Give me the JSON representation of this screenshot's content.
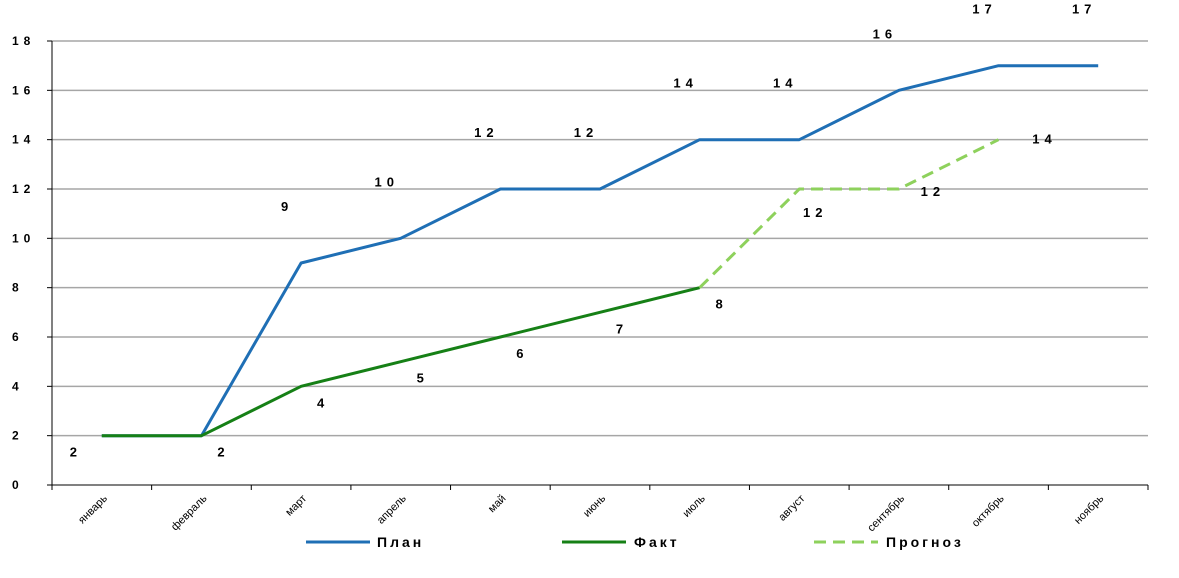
{
  "chart_data": {
    "type": "line",
    "categories": [
      "январь",
      "февраль",
      "март",
      "апрель",
      "май",
      "июнь",
      "июль",
      "август",
      "сентябрь",
      "октябрь",
      "ноябрь"
    ],
    "ylim": [
      0,
      18
    ],
    "yticks": [
      "0",
      "2",
      "4",
      "6",
      "8",
      "10",
      "12",
      "14",
      "16",
      "18"
    ],
    "grid": true,
    "legend_position": "bottom",
    "series": [
      {
        "name": "План",
        "color": "#1F6FB5",
        "dashed": false,
        "values": [
          2,
          2,
          9,
          10,
          12,
          12,
          14,
          14,
          16,
          17,
          17
        ],
        "labels": [
          null,
          null,
          "9",
          "10",
          "12",
          "12",
          "14",
          "14",
          "16",
          "17",
          "17"
        ]
      },
      {
        "name": "Факт",
        "color": "#168016",
        "dashed": false,
        "values": [
          2,
          2,
          4,
          5,
          6,
          7,
          8,
          null,
          null,
          null,
          null
        ],
        "labels": [
          "2",
          "2",
          "4",
          "5",
          "6",
          "7",
          "8",
          null,
          null,
          null,
          null
        ]
      },
      {
        "name": "Прогноз",
        "color": "#8ED15C",
        "dashed": true,
        "values": [
          null,
          null,
          null,
          null,
          null,
          null,
          8,
          12,
          12,
          14,
          null
        ],
        "labels": [
          null,
          null,
          null,
          null,
          null,
          null,
          null,
          "12",
          "12",
          "14",
          null
        ]
      }
    ]
  }
}
